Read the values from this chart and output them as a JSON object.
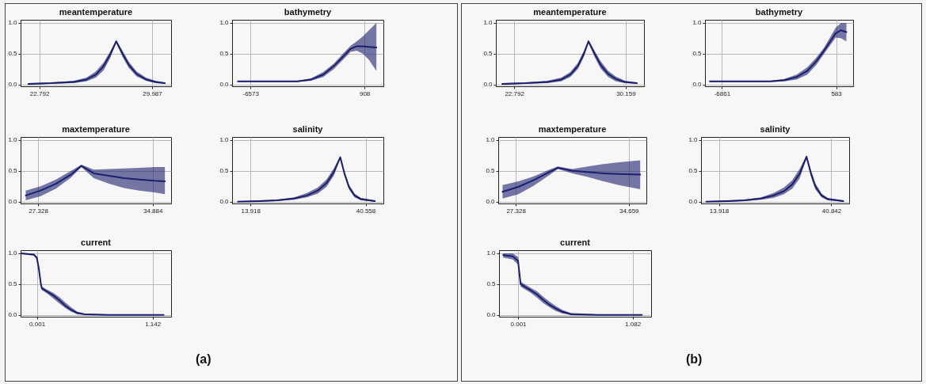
{
  "chart_data": [
    {
      "type": "line",
      "title": "meantemperature",
      "grid": true,
      "xlim": [
        21.6,
        31.2
      ],
      "xticks": [
        22.792,
        29.987
      ],
      "ylim": [
        -0.03,
        1.05
      ],
      "yticks": [
        {
          "value": 0,
          "label": "0.0"
        },
        {
          "value": 0.5,
          "label": "0.5"
        },
        {
          "value": 1,
          "label": "1.0"
        }
      ],
      "x": [
        22.1,
        23.5,
        25.0,
        25.8,
        26.4,
        26.9,
        27.3,
        27.7,
        28.1,
        28.5,
        29.0,
        29.6,
        30.2,
        30.8
      ],
      "series": [
        {
          "color": "#1b1f6e",
          "values": [
            0.01,
            0.02,
            0.04,
            0.08,
            0.16,
            0.3,
            0.48,
            0.7,
            0.5,
            0.32,
            0.17,
            0.08,
            0.04,
            0.02
          ],
          "lower": [
            0.0,
            0.01,
            0.02,
            0.05,
            0.11,
            0.23,
            0.42,
            0.68,
            0.45,
            0.27,
            0.13,
            0.06,
            0.02,
            0.01
          ],
          "upper": [
            0.02,
            0.03,
            0.06,
            0.11,
            0.21,
            0.36,
            0.53,
            0.72,
            0.55,
            0.37,
            0.21,
            0.11,
            0.06,
            0.03
          ]
        }
      ]
    },
    {
      "type": "line",
      "title": "bathymetry",
      "grid": true,
      "xlim": [
        -7780,
        2150
      ],
      "xticks": [
        -6573,
        908
      ],
      "ylim": [
        -0.03,
        1.05
      ],
      "yticks": [
        {
          "value": 0,
          "label": "0.0"
        },
        {
          "value": 0.5,
          "label": "0.5"
        },
        {
          "value": 1,
          "label": "1.0"
        }
      ],
      "x": [
        -7400,
        -5000,
        -3500,
        -2600,
        -1800,
        -1100,
        -500,
        0,
        400,
        800,
        1200,
        1690
      ],
      "series": [
        {
          "color": "#1b1f6e",
          "values": [
            0.05,
            0.05,
            0.05,
            0.08,
            0.16,
            0.3,
            0.45,
            0.58,
            0.62,
            0.62,
            0.61,
            0.6
          ],
          "lower": [
            0.04,
            0.04,
            0.04,
            0.06,
            0.12,
            0.25,
            0.4,
            0.53,
            0.55,
            0.5,
            0.4,
            0.22
          ],
          "upper": [
            0.06,
            0.06,
            0.06,
            0.1,
            0.2,
            0.34,
            0.5,
            0.63,
            0.7,
            0.78,
            0.88,
            1.0
          ]
        }
      ]
    },
    {
      "type": "line",
      "title": "maxtemperature",
      "grid": true,
      "xlim": [
        26.17,
        36.1
      ],
      "xticks": [
        27.328,
        34.884
      ],
      "ylim": [
        -0.03,
        1.05
      ],
      "yticks": [
        {
          "value": 0,
          "label": "0.0"
        },
        {
          "value": 0.5,
          "label": "0.5"
        },
        {
          "value": 1,
          "label": "1.0"
        }
      ],
      "x": [
        26.51,
        27.5,
        28.5,
        29.5,
        30.18,
        31.0,
        32.0,
        33.0,
        34.0,
        35.0,
        35.69
      ],
      "series": [
        {
          "color": "#1b1f6e",
          "values": [
            0.1,
            0.18,
            0.29,
            0.44,
            0.58,
            0.46,
            0.42,
            0.38,
            0.36,
            0.34,
            0.33
          ],
          "lower": [
            0.02,
            0.09,
            0.21,
            0.39,
            0.56,
            0.38,
            0.29,
            0.22,
            0.18,
            0.15,
            0.12
          ],
          "upper": [
            0.18,
            0.25,
            0.36,
            0.5,
            0.6,
            0.52,
            0.53,
            0.54,
            0.55,
            0.56,
            0.56
          ]
        }
      ]
    },
    {
      "type": "line",
      "title": "salinity",
      "grid": true,
      "xlim": [
        9.66,
        44.68
      ],
      "xticks": [
        13.918,
        40.558
      ],
      "ylim": [
        -0.03,
        1.05
      ],
      "yticks": [
        {
          "value": 0,
          "label": "0.0"
        },
        {
          "value": 0.5,
          "label": "0.5"
        },
        {
          "value": 1,
          "label": "1.0"
        }
      ],
      "x": [
        11.0,
        16,
        20,
        24,
        27,
        29.5,
        31.5,
        33.2,
        34.7,
        35.7,
        36.7,
        38,
        39.5,
        42.7
      ],
      "series": [
        {
          "color": "#1b1f6e",
          "values": [
            0.0,
            0.01,
            0.02,
            0.05,
            0.1,
            0.18,
            0.3,
            0.48,
            0.72,
            0.45,
            0.24,
            0.1,
            0.04,
            0.01
          ],
          "lower": [
            0.0,
            0.0,
            0.01,
            0.03,
            0.07,
            0.13,
            0.24,
            0.42,
            0.7,
            0.42,
            0.2,
            0.07,
            0.02,
            0.0
          ],
          "upper": [
            0.01,
            0.02,
            0.03,
            0.07,
            0.14,
            0.23,
            0.36,
            0.54,
            0.74,
            0.48,
            0.28,
            0.13,
            0.06,
            0.02
          ]
        }
      ]
    },
    {
      "type": "line",
      "title": "current",
      "grid": true,
      "annotations": [
        "(a)"
      ],
      "xlim": [
        -0.16,
        1.324
      ],
      "xticks": [
        0.001,
        1.142
      ],
      "ylim": [
        -0.03,
        1.05
      ],
      "yticks": [
        {
          "value": 0,
          "label": "0.0"
        },
        {
          "value": 0.5,
          "label": "0.5"
        },
        {
          "value": 1,
          "label": "1.0"
        }
      ],
      "x": [
        -0.155,
        -0.03,
        0.0,
        0.02,
        0.04,
        0.05,
        0.1,
        0.16,
        0.22,
        0.28,
        0.34,
        0.4,
        0.47,
        0.7,
        1.0,
        1.25
      ],
      "series": [
        {
          "color": "#1b1f6e",
          "values": [
            1.0,
            0.98,
            0.93,
            0.75,
            0.5,
            0.43,
            0.38,
            0.32,
            0.24,
            0.15,
            0.08,
            0.03,
            0.01,
            0.0,
            0.0,
            0.0
          ],
          "lower": [
            0.99,
            0.96,
            0.9,
            0.71,
            0.46,
            0.4,
            0.35,
            0.27,
            0.19,
            0.11,
            0.05,
            0.01,
            0.0,
            0.0,
            0.0,
            0.0
          ],
          "upper": [
            1.0,
            0.99,
            0.95,
            0.79,
            0.54,
            0.46,
            0.41,
            0.36,
            0.29,
            0.2,
            0.12,
            0.05,
            0.02,
            0.01,
            0.0,
            0.0
          ]
        }
      ]
    },
    {
      "type": "line",
      "title": "meantemperature",
      "grid": true,
      "xlim": [
        21.58,
        31.37
      ],
      "xticks": [
        22.792,
        30.159
      ],
      "ylim": [
        -0.03,
        1.05
      ],
      "yticks": [
        {
          "value": 0,
          "label": "0.0"
        },
        {
          "value": 0.5,
          "label": "0.5"
        },
        {
          "value": 1,
          "label": "1.0"
        }
      ],
      "x": [
        22.0,
        23.5,
        25.0,
        25.9,
        26.5,
        27.0,
        27.4,
        27.7,
        28.1,
        28.5,
        29.0,
        29.5,
        30.1,
        30.9
      ],
      "series": [
        {
          "color": "#1b1f6e",
          "values": [
            0.01,
            0.02,
            0.04,
            0.08,
            0.16,
            0.3,
            0.5,
            0.7,
            0.5,
            0.32,
            0.17,
            0.09,
            0.04,
            0.02
          ],
          "lower": [
            0.0,
            0.01,
            0.02,
            0.05,
            0.12,
            0.25,
            0.45,
            0.68,
            0.45,
            0.26,
            0.12,
            0.05,
            0.02,
            0.01
          ],
          "upper": [
            0.02,
            0.03,
            0.06,
            0.11,
            0.2,
            0.35,
            0.55,
            0.72,
            0.55,
            0.38,
            0.22,
            0.13,
            0.06,
            0.03
          ]
        }
      ]
    },
    {
      "type": "line",
      "title": "bathymetry",
      "grid": true,
      "xlim": [
        -7967,
        1689
      ],
      "xticks": [
        -6861,
        583
      ],
      "ylim": [
        -0.03,
        1.05
      ],
      "yticks": [
        {
          "value": 0,
          "label": "0.0"
        },
        {
          "value": 0.5,
          "label": "0.5"
        },
        {
          "value": 1,
          "label": "1.0"
        }
      ],
      "x": [
        -7650,
        -5000,
        -3700,
        -2800,
        -2000,
        -1300,
        -700,
        -200,
        200,
        550,
        900,
        1250
      ],
      "series": [
        {
          "color": "#1b1f6e",
          "values": [
            0.05,
            0.05,
            0.05,
            0.07,
            0.12,
            0.22,
            0.38,
            0.55,
            0.7,
            0.83,
            0.88,
            0.85
          ],
          "lower": [
            0.04,
            0.04,
            0.04,
            0.05,
            0.08,
            0.16,
            0.32,
            0.5,
            0.64,
            0.76,
            0.75,
            0.7
          ],
          "upper": [
            0.06,
            0.06,
            0.06,
            0.09,
            0.16,
            0.28,
            0.44,
            0.6,
            0.77,
            0.92,
            1.0,
            1.0
          ]
        }
      ]
    },
    {
      "type": "line",
      "title": "maxtemperature",
      "grid": true,
      "xlim": [
        26.19,
        35.8
      ],
      "xticks": [
        27.328,
        34.659
      ],
      "ylim": [
        -0.03,
        1.05
      ],
      "yticks": [
        {
          "value": 0,
          "label": "0.0"
        },
        {
          "value": 0.5,
          "label": "0.5"
        },
        {
          "value": 1,
          "label": "1.0"
        }
      ],
      "x": [
        26.47,
        27.5,
        28.5,
        29.5,
        30.06,
        31,
        32,
        33,
        34,
        35.4
      ],
      "series": [
        {
          "color": "#1b1f6e",
          "values": [
            0.16,
            0.24,
            0.35,
            0.48,
            0.55,
            0.5,
            0.48,
            0.46,
            0.45,
            0.44
          ],
          "lower": [
            0.05,
            0.12,
            0.26,
            0.43,
            0.53,
            0.46,
            0.4,
            0.33,
            0.27,
            0.2
          ],
          "upper": [
            0.27,
            0.33,
            0.41,
            0.52,
            0.57,
            0.53,
            0.57,
            0.61,
            0.64,
            0.67
          ]
        }
      ]
    },
    {
      "type": "line",
      "title": "salinity",
      "grid": true,
      "xlim": [
        9.65,
        45.11
      ],
      "xticks": [
        13.918,
        40.842
      ],
      "ylim": [
        -0.03,
        1.05
      ],
      "yticks": [
        {
          "value": 0,
          "label": "0.0"
        },
        {
          "value": 0.5,
          "label": "0.5"
        },
        {
          "value": 1,
          "label": "1.0"
        }
      ],
      "x": [
        10.9,
        16,
        20,
        24,
        27,
        29.5,
        31.5,
        33.3,
        34.9,
        36,
        37,
        38.5,
        40,
        43.7
      ],
      "series": [
        {
          "color": "#1b1f6e",
          "values": [
            0.0,
            0.01,
            0.02,
            0.05,
            0.1,
            0.17,
            0.28,
            0.46,
            0.73,
            0.45,
            0.25,
            0.1,
            0.04,
            0.01
          ],
          "lower": [
            0.0,
            0.0,
            0.01,
            0.03,
            0.06,
            0.12,
            0.21,
            0.38,
            0.71,
            0.4,
            0.2,
            0.07,
            0.02,
            0.0
          ],
          "upper": [
            0.01,
            0.02,
            0.03,
            0.07,
            0.14,
            0.23,
            0.35,
            0.54,
            0.75,
            0.5,
            0.3,
            0.13,
            0.06,
            0.02
          ]
        }
      ]
    },
    {
      "type": "line",
      "title": "current",
      "grid": true,
      "annotations": [
        "(b)"
      ],
      "xlim": [
        -0.179,
        1.257
      ],
      "xticks": [
        0.001,
        1.082
      ],
      "ylim": [
        -0.03,
        1.05
      ],
      "yticks": [
        {
          "value": 0,
          "label": "0.0"
        },
        {
          "value": 0.5,
          "label": "0.5"
        },
        {
          "value": 1,
          "label": "1.0"
        }
      ],
      "x": [
        -0.14,
        -0.05,
        0.0,
        0.015,
        0.025,
        0.06,
        0.12,
        0.18,
        0.24,
        0.3,
        0.36,
        0.42,
        0.5,
        0.75,
        1.0,
        1.17
      ],
      "series": [
        {
          "color": "#1b1f6e",
          "values": [
            0.97,
            0.95,
            0.88,
            0.65,
            0.5,
            0.46,
            0.4,
            0.33,
            0.24,
            0.16,
            0.1,
            0.05,
            0.01,
            0.0,
            0.0,
            0.0
          ],
          "lower": [
            0.93,
            0.9,
            0.82,
            0.6,
            0.46,
            0.42,
            0.36,
            0.28,
            0.19,
            0.12,
            0.06,
            0.02,
            0.0,
            0.0,
            0.0,
            0.0
          ],
          "upper": [
            1.0,
            1.0,
            0.94,
            0.7,
            0.54,
            0.5,
            0.44,
            0.38,
            0.29,
            0.21,
            0.14,
            0.08,
            0.03,
            0.01,
            0.0,
            0.0
          ]
        }
      ]
    }
  ]
}
